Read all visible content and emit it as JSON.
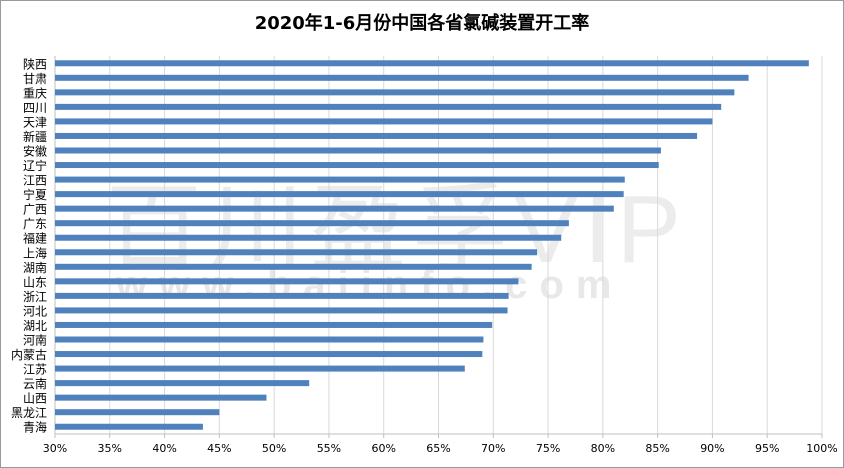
{
  "chart_data": {
    "type": "bar",
    "orientation": "horizontal",
    "title": "2020年1-6月份中国各省氯碱装置开工率",
    "categories": [
      "陕西",
      "甘肃",
      "重庆",
      "四川",
      "天津",
      "新疆",
      "安徽",
      "辽宁",
      "江西",
      "宁夏",
      "广西",
      "广东",
      "福建",
      "上海",
      "湖南",
      "山东",
      "浙江",
      "河北",
      "湖北",
      "河南",
      "内蒙古",
      "江苏",
      "云南",
      "山西",
      "黑龙江",
      "青海"
    ],
    "values": [
      98.8,
      93.3,
      92.0,
      90.8,
      90.0,
      88.6,
      85.3,
      85.1,
      82.0,
      81.9,
      81.0,
      76.9,
      76.2,
      74.0,
      73.5,
      72.3,
      71.4,
      71.3,
      69.9,
      69.1,
      69.0,
      67.4,
      53.2,
      49.3,
      45.0,
      43.5
    ],
    "xlim": [
      30,
      100
    ],
    "xticks": [
      "30%",
      "35%",
      "40%",
      "45%",
      "50%",
      "55%",
      "60%",
      "65%",
      "70%",
      "75%",
      "80%",
      "85%",
      "90%",
      "95%",
      "100%"
    ],
    "grid": "vertical",
    "legend": "none",
    "bar_color": "#4f81bd",
    "watermark": [
      "百川盈孚VIP",
      "www.baiinfo.com"
    ]
  }
}
